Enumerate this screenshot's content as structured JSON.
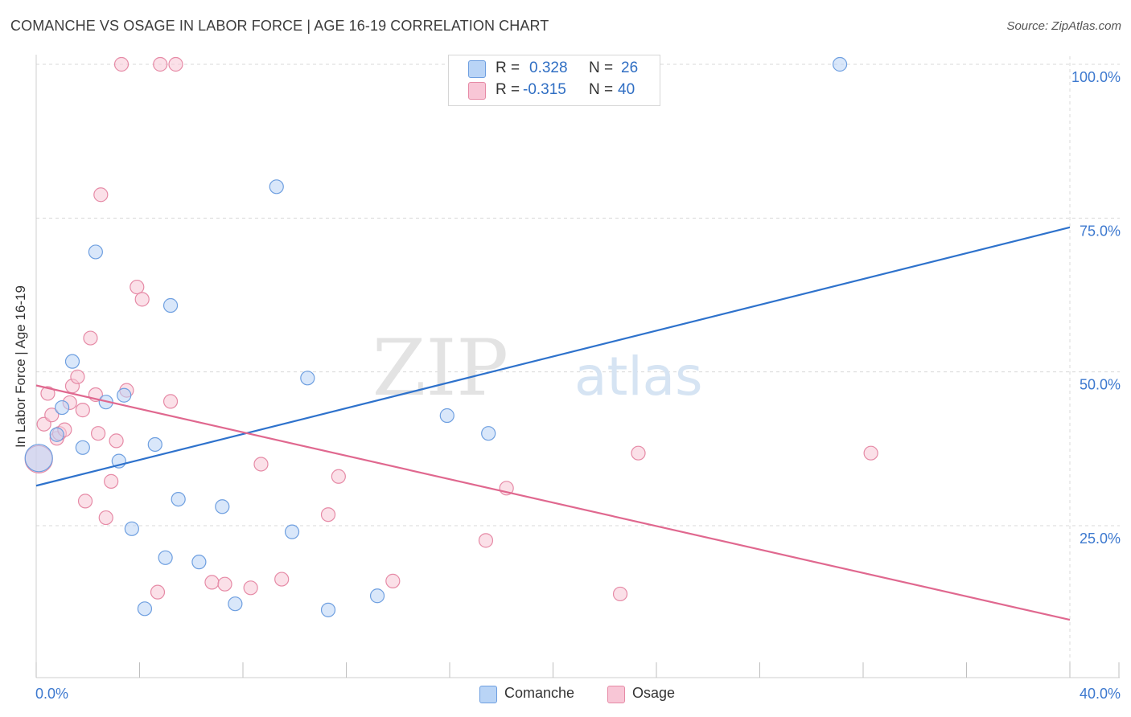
{
  "title": "COMANCHE VS OSAGE IN LABOR FORCE | AGE 16-19 CORRELATION CHART",
  "source": "Source: ZipAtlas.com",
  "watermark": {
    "zip": "ZIP",
    "atlas": "atlas"
  },
  "legend": {
    "rows": [
      {
        "r_label": "R =",
        "r_value": "0.328",
        "n_label": "N =",
        "n_value": "26"
      },
      {
        "r_label": "R =",
        "r_value": "-0.315",
        "n_label": "N =",
        "n_value": "40"
      }
    ]
  },
  "colors": {
    "comanche_fill": "#b9d4f6",
    "comanche_stroke": "#6e9fe0",
    "comanche_line": "#2e72cc",
    "osage_fill": "#f8c6d6",
    "osage_stroke": "#e68aa6",
    "osage_line": "#e0688f",
    "tick_text": "#3d79cf",
    "grid": "#d9d9d9"
  },
  "chart_data": {
    "type": "scatter",
    "title": "COMANCHE VS OSAGE IN LABOR FORCE | AGE 16-19 CORRELATION CHART",
    "xlabel": "",
    "ylabel": "In Labor Force | Age 16-19",
    "xlim": [
      0,
      40
    ],
    "ylim": [
      0,
      102
    ],
    "x_tick_labels": [
      "0.0%",
      "40.0%"
    ],
    "y_ticks": [
      25,
      50,
      75,
      100
    ],
    "y_tick_labels": [
      "25.0%",
      "50.0%",
      "75.0%",
      "100.0%"
    ],
    "series": [
      {
        "name": "Comanche",
        "R": 0.328,
        "N": 26,
        "trend": {
          "x": [
            0,
            40
          ],
          "y": [
            31.5,
            73.5
          ]
        },
        "points": [
          {
            "x": 0.1,
            "y": 36.0,
            "big": true
          },
          {
            "x": 0.8,
            "y": 39.8
          },
          {
            "x": 1.0,
            "y": 44.2
          },
          {
            "x": 1.4,
            "y": 51.7
          },
          {
            "x": 1.8,
            "y": 37.7
          },
          {
            "x": 2.3,
            "y": 69.5
          },
          {
            "x": 2.7,
            "y": 45.1
          },
          {
            "x": 3.2,
            "y": 35.5
          },
          {
            "x": 3.4,
            "y": 46.2
          },
          {
            "x": 3.7,
            "y": 24.5
          },
          {
            "x": 4.2,
            "y": 11.5
          },
          {
            "x": 4.6,
            "y": 38.2
          },
          {
            "x": 5.0,
            "y": 19.8
          },
          {
            "x": 5.2,
            "y": 60.8
          },
          {
            "x": 5.5,
            "y": 29.3
          },
          {
            "x": 6.3,
            "y": 19.1
          },
          {
            "x": 7.7,
            "y": 12.3
          },
          {
            "x": 7.2,
            "y": 28.1
          },
          {
            "x": 9.3,
            "y": 80.1
          },
          {
            "x": 9.9,
            "y": 24.0
          },
          {
            "x": 10.5,
            "y": 49.0
          },
          {
            "x": 11.3,
            "y": 11.3
          },
          {
            "x": 13.2,
            "y": 13.6
          },
          {
            "x": 15.9,
            "y": 42.9
          },
          {
            "x": 17.5,
            "y": 40.0
          },
          {
            "x": 31.1,
            "y": 100.0
          }
        ]
      },
      {
        "name": "Osage",
        "R": -0.315,
        "N": 40,
        "trend": {
          "x": [
            0,
            40
          ],
          "y": [
            47.8,
            9.7
          ]
        },
        "points": [
          {
            "x": 0.1,
            "y": 35.8,
            "big": true
          },
          {
            "x": 0.3,
            "y": 41.5
          },
          {
            "x": 0.45,
            "y": 46.5
          },
          {
            "x": 0.6,
            "y": 43.0
          },
          {
            "x": 0.8,
            "y": 39.2
          },
          {
            "x": 0.9,
            "y": 40.0
          },
          {
            "x": 1.1,
            "y": 40.6
          },
          {
            "x": 1.3,
            "y": 45.0
          },
          {
            "x": 1.4,
            "y": 47.7
          },
          {
            "x": 1.6,
            "y": 49.2
          },
          {
            "x": 1.8,
            "y": 43.8
          },
          {
            "x": 1.9,
            "y": 29.0
          },
          {
            "x": 2.1,
            "y": 55.5
          },
          {
            "x": 2.3,
            "y": 46.3
          },
          {
            "x": 2.4,
            "y": 40.0
          },
          {
            "x": 2.5,
            "y": 78.8
          },
          {
            "x": 2.7,
            "y": 26.3
          },
          {
            "x": 2.9,
            "y": 32.2
          },
          {
            "x": 3.1,
            "y": 38.8
          },
          {
            "x": 3.3,
            "y": 100.0
          },
          {
            "x": 3.5,
            "y": 47.0
          },
          {
            "x": 3.9,
            "y": 63.8
          },
          {
            "x": 4.1,
            "y": 61.8
          },
          {
            "x": 4.7,
            "y": 14.2
          },
          {
            "x": 4.8,
            "y": 100.0
          },
          {
            "x": 5.2,
            "y": 45.2
          },
          {
            "x": 5.4,
            "y": 100.0
          },
          {
            "x": 6.8,
            "y": 15.8
          },
          {
            "x": 7.3,
            "y": 15.5
          },
          {
            "x": 8.3,
            "y": 14.9
          },
          {
            "x": 8.7,
            "y": 35.0
          },
          {
            "x": 9.5,
            "y": 16.3
          },
          {
            "x": 11.3,
            "y": 26.8
          },
          {
            "x": 11.7,
            "y": 33.0
          },
          {
            "x": 13.8,
            "y": 16.0
          },
          {
            "x": 17.4,
            "y": 22.6
          },
          {
            "x": 18.2,
            "y": 31.1
          },
          {
            "x": 22.6,
            "y": 13.9
          },
          {
            "x": 23.3,
            "y": 36.8
          },
          {
            "x": 32.3,
            "y": 36.8
          }
        ]
      }
    ]
  }
}
